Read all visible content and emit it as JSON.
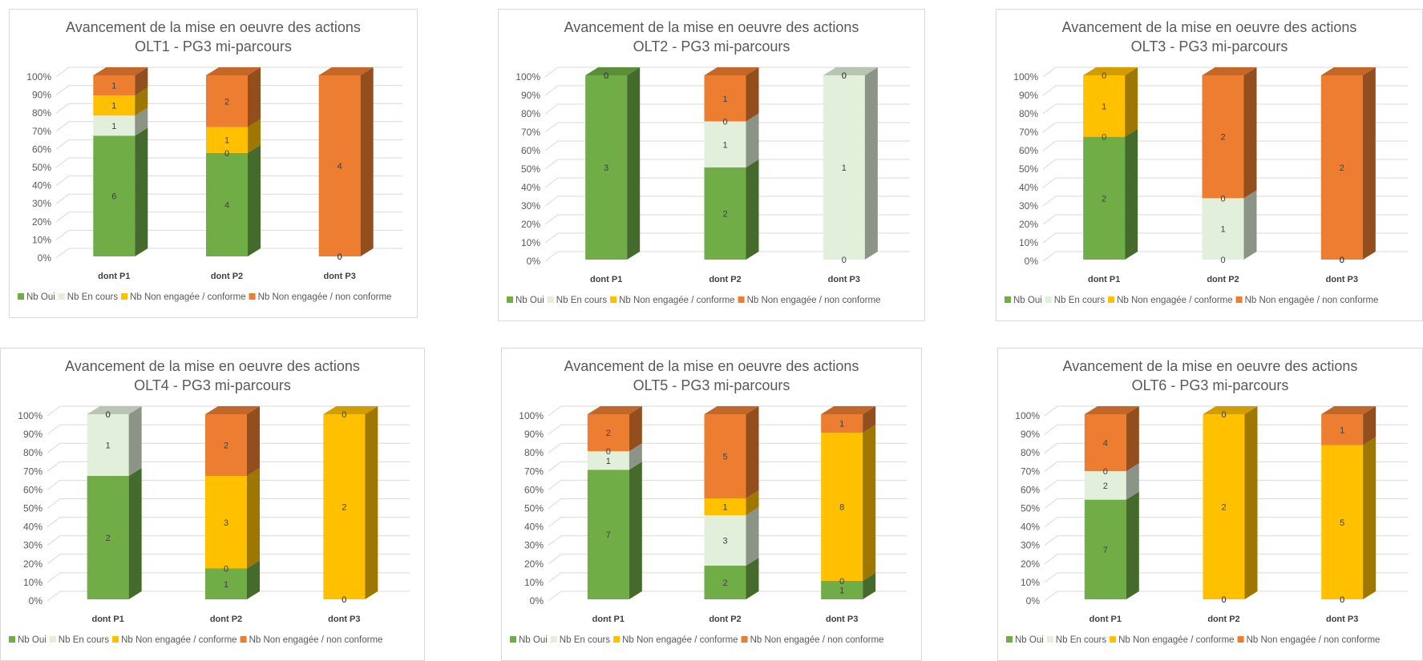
{
  "colors": {
    "Nb Oui": "#70ad47",
    "Nb En cours": "#e2efda",
    "Nb Non engagée / conforme": "#ffc000",
    "Nb Non engagée / non conforme": "#ed7d31"
  },
  "chart_data": [
    {
      "type": "bar",
      "stacked": "percent",
      "title": [
        "Avancement de la mise en oeuvre des actions",
        "OLT1 - PG3 mi-parcours"
      ],
      "categories": [
        "dont P1",
        "dont P2",
        "dont P3"
      ],
      "yticks": [
        "0%",
        "10%",
        "20%",
        "30%",
        "40%",
        "50%",
        "60%",
        "70%",
        "80%",
        "90%",
        "100%"
      ],
      "legend": [
        "Nb Oui",
        "Nb En cours",
        "Nb Non engagée / conforme",
        "Nb Non engagée / non conforme"
      ],
      "legend_position": "bottom",
      "series": [
        {
          "name": "Nb Oui",
          "values": [
            6,
            4,
            0
          ]
        },
        {
          "name": "Nb En cours",
          "values": [
            1,
            0,
            0
          ]
        },
        {
          "name": "Nb Non engagée / conforme",
          "values": [
            1,
            1,
            0
          ]
        },
        {
          "name": "Nb Non engagée / non conforme",
          "values": [
            1,
            2,
            4
          ]
        }
      ]
    },
    {
      "type": "bar",
      "stacked": "percent",
      "title": [
        "Avancement de la mise en oeuvre des actions",
        "OLT2 - PG3 mi-parcours"
      ],
      "categories": [
        "dont P1",
        "dont P2",
        "dont P3"
      ],
      "yticks": [
        "0%",
        "10%",
        "20%",
        "30%",
        "40%",
        "50%",
        "60%",
        "70%",
        "80%",
        "90%",
        "100%"
      ],
      "legend": [
        "Nb Oui",
        "Nb En cours",
        "Nb Non engagée / conforme",
        "Nb Non engagée / non conforme"
      ],
      "legend_position": "bottom",
      "series": [
        {
          "name": "Nb Oui",
          "values": [
            3,
            2,
            0
          ]
        },
        {
          "name": "Nb En cours",
          "values": [
            0,
            1,
            1
          ]
        },
        {
          "name": "Nb Non engagée / conforme",
          "values": [
            0,
            0,
            0
          ]
        },
        {
          "name": "Nb Non engagée / non conforme",
          "values": [
            0,
            1,
            0
          ]
        }
      ]
    },
    {
      "type": "bar",
      "stacked": "percent",
      "title": [
        "Avancement de la mise en oeuvre des actions",
        "OLT3 - PG3 mi-parcours"
      ],
      "categories": [
        "dont P1",
        "dont P2",
        "dont P3"
      ],
      "yticks": [
        "0%",
        "10%",
        "20%",
        "30%",
        "40%",
        "50%",
        "60%",
        "70%",
        "80%",
        "90%",
        "100%"
      ],
      "legend": [
        "Nb Oui",
        "Nb En cours",
        "Nb Non engagée / conforme",
        "Nb Non engagée / non conforme"
      ],
      "legend_position": "bottom",
      "series": [
        {
          "name": "Nb Oui",
          "values": [
            2,
            0,
            0
          ]
        },
        {
          "name": "Nb En cours",
          "values": [
            0,
            1,
            0
          ]
        },
        {
          "name": "Nb Non engagée / conforme",
          "values": [
            1,
            0,
            0
          ]
        },
        {
          "name": "Nb Non engagée / non conforme",
          "values": [
            0,
            2,
            2
          ]
        }
      ]
    },
    {
      "type": "bar",
      "stacked": "percent",
      "title": [
        "Avancement de la mise en oeuvre des actions",
        "OLT4 - PG3 mi-parcours"
      ],
      "categories": [
        "dont P1",
        "dont P2",
        "dont P3"
      ],
      "yticks": [
        "0%",
        "10%",
        "20%",
        "30%",
        "40%",
        "50%",
        "60%",
        "70%",
        "80%",
        "90%",
        "100%"
      ],
      "legend": [
        "Nb Oui",
        "Nb En cours",
        "Nb Non engagée / conforme",
        "Nb Non engagée / non conforme"
      ],
      "legend_position": "bottom",
      "series": [
        {
          "name": "Nb Oui",
          "values": [
            2,
            1,
            0
          ]
        },
        {
          "name": "Nb En cours",
          "values": [
            1,
            0,
            0
          ]
        },
        {
          "name": "Nb Non engagée / conforme",
          "values": [
            0,
            3,
            2
          ]
        },
        {
          "name": "Nb Non engagée / non conforme",
          "values": [
            0,
            2,
            0
          ]
        }
      ]
    },
    {
      "type": "bar",
      "stacked": "percent",
      "title": [
        "Avancement de la mise en oeuvre des actions",
        "OLT5 - PG3 mi-parcours"
      ],
      "categories": [
        "dont P1",
        "dont P2",
        "dont P3"
      ],
      "yticks": [
        "0%",
        "10%",
        "20%",
        "30%",
        "40%",
        "50%",
        "60%",
        "70%",
        "80%",
        "90%",
        "100%"
      ],
      "legend": [
        "Nb Oui",
        "Nb En cours",
        "Nb Non engagée / conforme",
        "Nb Non engagée / non conforme"
      ],
      "legend_position": "bottom",
      "series": [
        {
          "name": "Nb Oui",
          "values": [
            7,
            2,
            1
          ]
        },
        {
          "name": "Nb En cours",
          "values": [
            1,
            3,
            0
          ]
        },
        {
          "name": "Nb Non engagée / conforme",
          "values": [
            0,
            1,
            8
          ]
        },
        {
          "name": "Nb Non engagée / non conforme",
          "values": [
            2,
            5,
            1
          ]
        }
      ]
    },
    {
      "type": "bar",
      "stacked": "percent",
      "title": [
        "Avancement de la mise en oeuvre des actions",
        "OLT6 - PG3 mi-parcours"
      ],
      "categories": [
        "dont P1",
        "dont P2",
        "dont P3"
      ],
      "yticks": [
        "0%",
        "10%",
        "20%",
        "30%",
        "40%",
        "50%",
        "60%",
        "70%",
        "80%",
        "90%",
        "100%"
      ],
      "legend": [
        "Nb Oui",
        "Nb En cours",
        "Nb Non engagée / conforme",
        "Nb Non engagée / non conforme"
      ],
      "legend_position": "bottom",
      "series": [
        {
          "name": "Nb Oui",
          "values": [
            7,
            0,
            0
          ]
        },
        {
          "name": "Nb En cours",
          "values": [
            2,
            0,
            0
          ]
        },
        {
          "name": "Nb Non engagée / conforme",
          "values": [
            0,
            2,
            5
          ]
        },
        {
          "name": "Nb Non engagée / non conforme",
          "values": [
            4,
            0,
            1
          ]
        }
      ]
    }
  ]
}
